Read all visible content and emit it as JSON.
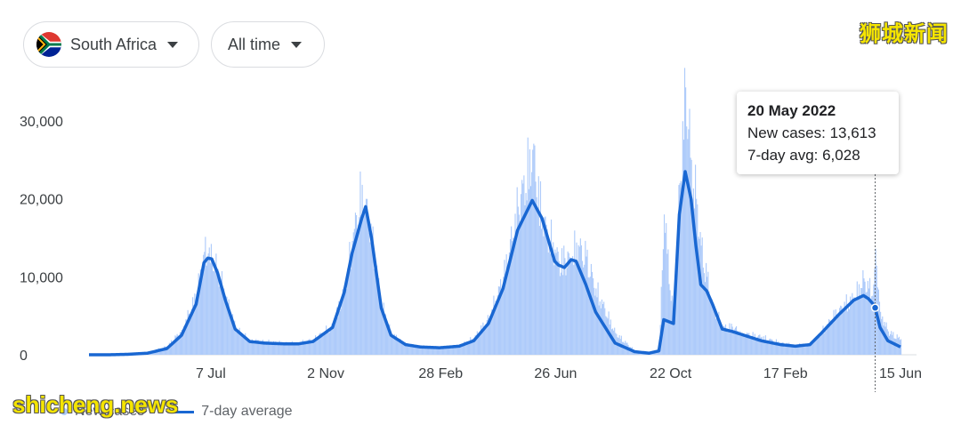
{
  "filters": {
    "country": "South Africa",
    "range": "All time"
  },
  "watermarks": {
    "top_right": "狮城新闻",
    "bottom_left": "shicheng.news"
  },
  "tooltip": {
    "date": "20 May 2022",
    "new_cases": "New cases: 13,613",
    "avg": "7-day avg: 6,028"
  },
  "legend": {
    "new_cases": "New cases",
    "avg": "7-day average"
  },
  "colors": {
    "bars": "#aecbfa",
    "line": "#1967d2"
  },
  "chart_data": {
    "type": "area",
    "title": "",
    "xlabel": "",
    "ylabel": "",
    "ylim": [
      0,
      30000
    ],
    "y_ticks": [
      0,
      10000,
      20000,
      30000
    ],
    "y_tick_labels": [
      "0",
      "10,000",
      "20,000",
      "30,000"
    ],
    "x_tick_labels": [
      "7 Jul",
      "2 Nov",
      "28 Feb",
      "26 Jun",
      "22 Oct",
      "17 Feb",
      "15 Jun"
    ],
    "x_tick_days": [
      125,
      243,
      361,
      479,
      597,
      715,
      833
    ],
    "days_range": [
      0,
      833
    ],
    "hover_day": 807,
    "series": [
      {
        "name": "New cases",
        "kind": "bars",
        "x": [
          0,
          20,
          40,
          60,
          80,
          95,
          110,
          118,
          122,
          126,
          132,
          140,
          150,
          165,
          180,
          200,
          215,
          230,
          250,
          262,
          270,
          280,
          284,
          290,
          300,
          310,
          325,
          340,
          360,
          380,
          395,
          410,
          425,
          440,
          455,
          465,
          478,
          482,
          488,
          495,
          500,
          510,
          520,
          540,
          560,
          575,
          585,
          590,
          600,
          606,
          612,
          618,
          623,
          628,
          634,
          640,
          650,
          660,
          670,
          690,
          710,
          725,
          740,
          752,
          770,
          785,
          795,
          800,
          805,
          807,
          812,
          820,
          833
        ],
        "values": [
          0,
          0,
          80,
          250,
          1100,
          3200,
          7800,
          13200,
          13000,
          12400,
          11000,
          7500,
          3500,
          1800,
          1700,
          1500,
          1500,
          2000,
          3800,
          8500,
          14600,
          21800,
          20000,
          15000,
          6500,
          2700,
          1300,
          1100,
          900,
          1200,
          2200,
          4700,
          10000,
          19000,
          26300,
          17500,
          13500,
          12000,
          12400,
          12200,
          14400,
          12600,
          8500,
          2800,
          500,
          0,
          700,
          18000,
          3800,
          22000,
          34300,
          25000,
          20000,
          14000,
          10000,
          6500,
          3500,
          3600,
          2800,
          2300,
          1500,
          1200,
          1400,
          3000,
          6000,
          7400,
          9800,
          8500,
          9000,
          13613,
          5500,
          3000,
          2000
        ]
      },
      {
        "name": "7-day average",
        "kind": "line",
        "x": [
          0,
          20,
          40,
          60,
          80,
          95,
          110,
          118,
          122,
          126,
          132,
          140,
          150,
          165,
          180,
          200,
          215,
          230,
          250,
          262,
          270,
          280,
          284,
          290,
          300,
          310,
          325,
          340,
          360,
          380,
          395,
          410,
          425,
          440,
          455,
          465,
          478,
          482,
          488,
          495,
          500,
          510,
          520,
          540,
          560,
          575,
          585,
          590,
          600,
          606,
          612,
          618,
          623,
          628,
          634,
          640,
          650,
          660,
          670,
          690,
          710,
          725,
          740,
          752,
          770,
          785,
          795,
          800,
          805,
          807,
          812,
          820,
          833
        ],
        "values": [
          0,
          0,
          60,
          200,
          800,
          2500,
          6500,
          11800,
          12400,
          12300,
          10500,
          7000,
          3300,
          1700,
          1500,
          1400,
          1400,
          1700,
          3500,
          8000,
          13000,
          17500,
          19000,
          15000,
          6000,
          2500,
          1300,
          1000,
          900,
          1100,
          1800,
          4000,
          8500,
          16000,
          19800,
          17500,
          12000,
          11500,
          11200,
          12200,
          12000,
          9000,
          5500,
          1500,
          400,
          200,
          500,
          4500,
          4000,
          18000,
          23500,
          20000,
          14000,
          9000,
          8200,
          6500,
          3300,
          3000,
          2600,
          1800,
          1300,
          1100,
          1300,
          2800,
          5200,
          7000,
          7600,
          7200,
          6500,
          6028,
          3500,
          1800,
          1000
        ]
      }
    ]
  }
}
